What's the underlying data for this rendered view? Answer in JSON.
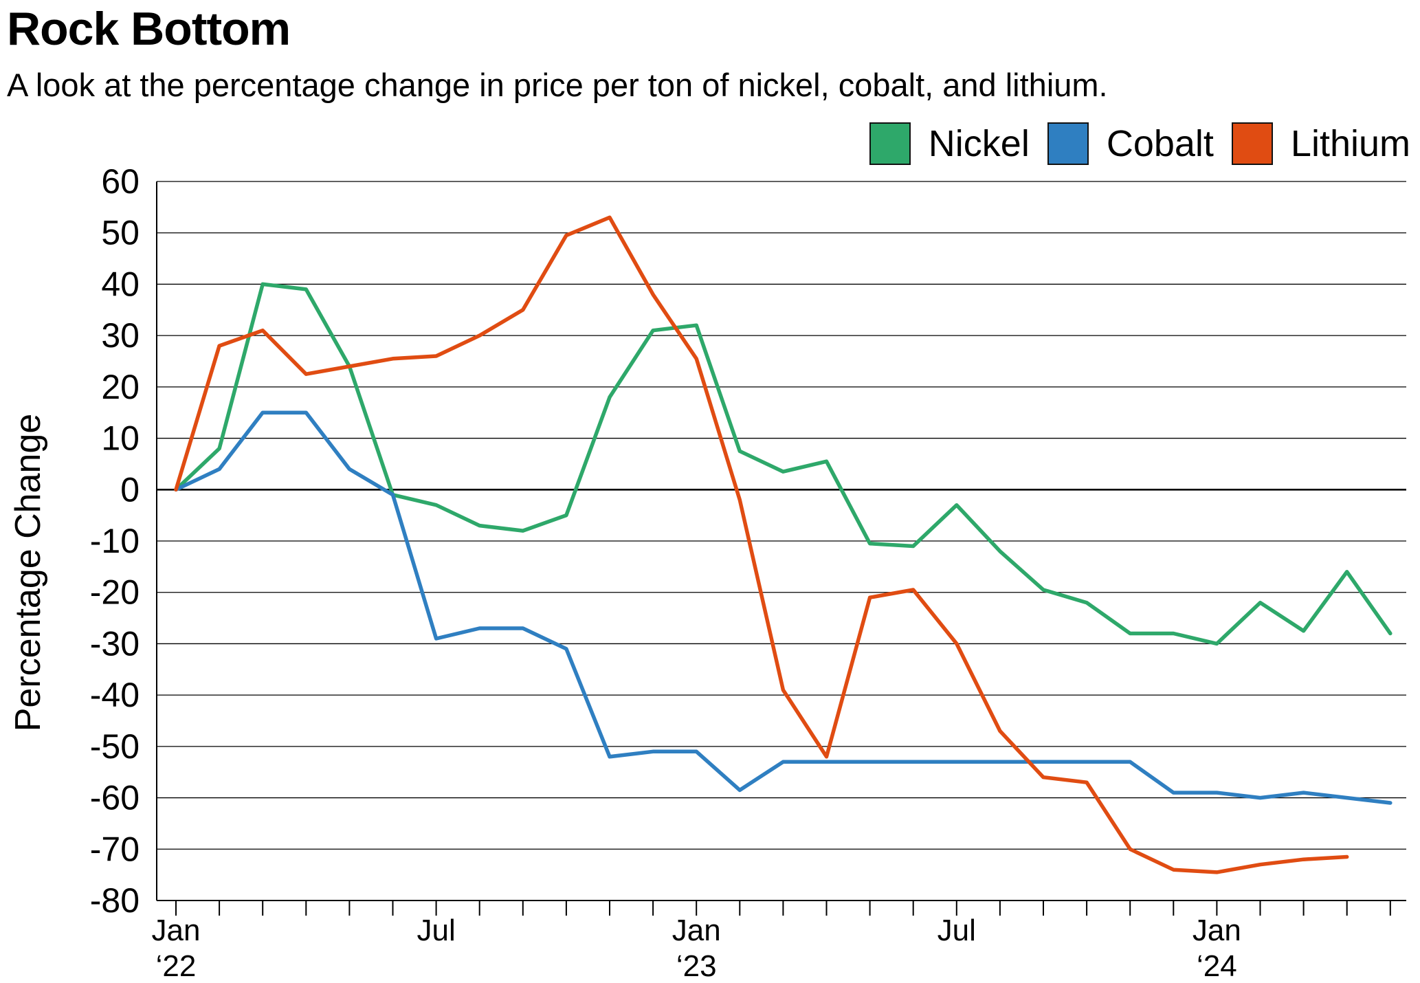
{
  "chart_data": {
    "type": "line",
    "title": "Rock Bottom",
    "subtitle": "A look at the percentage change in price per ton of nickel, cobalt, and lithium.",
    "ylabel": "Percentage Change",
    "xlabel": "",
    "ylim": [
      -80,
      60
    ],
    "y_ticks": [
      60,
      50,
      40,
      30,
      20,
      10,
      0,
      -10,
      -20,
      -30,
      -40,
      -50,
      -60,
      -70,
      -80
    ],
    "grid": true,
    "legend_position": "top-right",
    "x_tick_labels": [
      {
        "index": 0,
        "month": "Jan",
        "year": "‘22"
      },
      {
        "index": 6,
        "month": "Jul",
        "year": ""
      },
      {
        "index": 12,
        "month": "Jan",
        "year": "‘23"
      },
      {
        "index": 18,
        "month": "Jul",
        "year": ""
      },
      {
        "index": 24,
        "month": "Jan",
        "year": "‘24"
      }
    ],
    "x": [
      "Jan 2022",
      "Feb 2022",
      "Mar 2022",
      "Apr 2022",
      "May 2022",
      "Jun 2022",
      "Jul 2022",
      "Aug 2022",
      "Sep 2022",
      "Oct 2022",
      "Nov 2022",
      "Dec 2022",
      "Jan 2023",
      "Feb 2023",
      "Mar 2023",
      "Apr 2023",
      "May 2023",
      "Jun 2023",
      "Jul 2023",
      "Aug 2023",
      "Sep 2023",
      "Oct 2023",
      "Nov 2023",
      "Dec 2023",
      "Jan 2024",
      "Feb 2024",
      "Mar 2024",
      "Apr 2024",
      "May 2024"
    ],
    "series": [
      {
        "name": "Nickel",
        "color": "#2ea86a",
        "values": [
          0,
          8,
          40,
          39,
          24,
          -1,
          -3,
          -7,
          -8,
          -5,
          18,
          31,
          32,
          7.5,
          3.5,
          5.5,
          -10.5,
          -11,
          -3,
          -12,
          -19.5,
          -22,
          -28,
          -28,
          -30,
          -22,
          -27.5,
          -16,
          -28
        ]
      },
      {
        "name": "Cobalt",
        "color": "#2f7fc1",
        "values": [
          0,
          4,
          15,
          15,
          4,
          -1,
          -29,
          -27,
          -27,
          -31,
          -52,
          -51,
          -51,
          -58.5,
          -53,
          -53,
          -53,
          -53,
          -53,
          -53,
          -53,
          -53,
          -53,
          -59,
          -59,
          -60,
          -59,
          -60,
          -61
        ]
      },
      {
        "name": "Lithium",
        "color": "#e04c12",
        "values": [
          0,
          28,
          31,
          22.5,
          24,
          25.5,
          26,
          30,
          35,
          49.5,
          53,
          38,
          25.5,
          -2,
          -39,
          -52,
          -21,
          -19.5,
          -30,
          -47,
          -56,
          -57,
          -70,
          -74,
          -74.5,
          -73,
          -72,
          -71.5,
          null
        ]
      }
    ]
  }
}
